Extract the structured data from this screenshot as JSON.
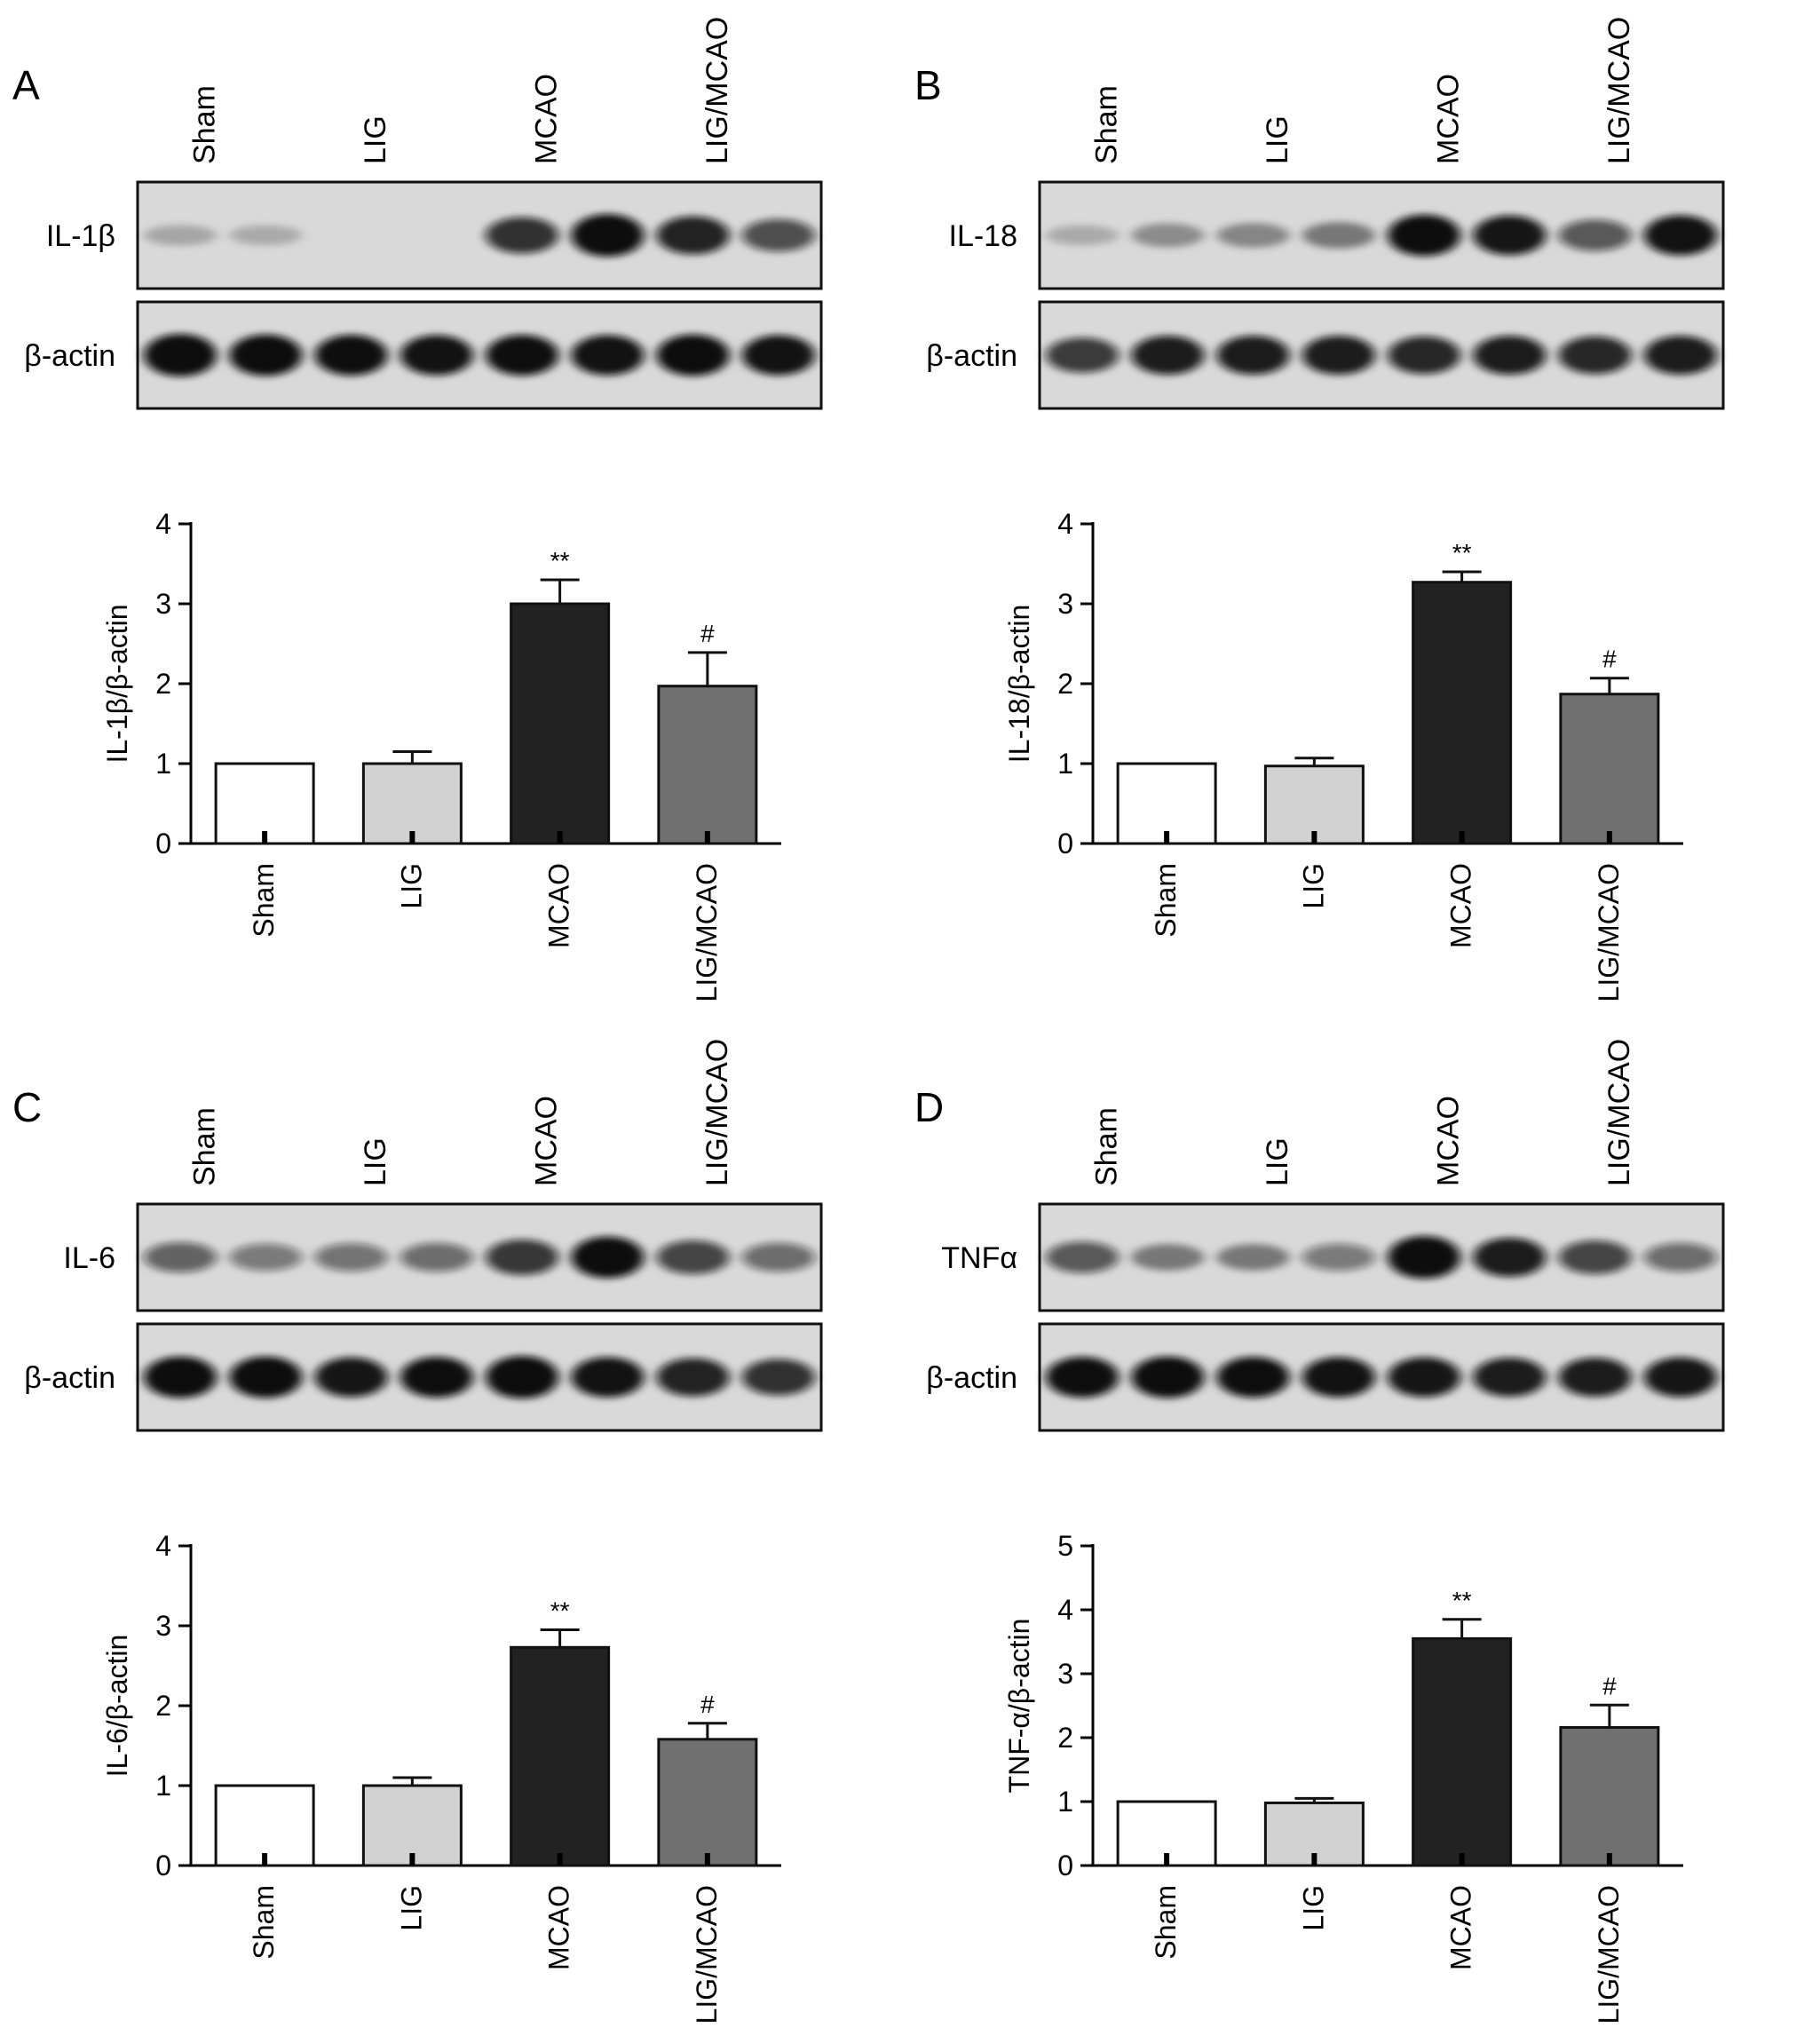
{
  "lane_labels": [
    "Sham",
    "LIG",
    "MCAO",
    "LIG/MCAO"
  ],
  "colors": {
    "Sham": "#ffffff",
    "LIG": "#d2d2d2",
    "MCAO": "#222222",
    "LIG/MCAO": "#707070"
  },
  "chart_data": [
    {
      "panel": "A",
      "type": "bar",
      "categories": [
        "Sham",
        "LIG",
        "MCAO",
        "LIG/MCAO"
      ],
      "values": [
        1.0,
        1.0,
        3.0,
        1.97
      ],
      "errors": [
        0.0,
        0.15,
        0.3,
        0.42
      ],
      "ylabel": "IL-1β/β-actin",
      "ylim": [
        0,
        4
      ],
      "yticks": [
        0,
        1,
        2,
        3,
        4
      ],
      "significance": [
        "",
        "",
        "**",
        "#"
      ],
      "blots": [
        {
          "label": "IL-1β",
          "bands": [
            0.12,
            0.1,
            0.0,
            0.0,
            0.75,
            1.0,
            0.82,
            0.6
          ]
        },
        {
          "label": "β-actin",
          "bands": [
            1.0,
            0.95,
            0.92,
            0.9,
            0.92,
            0.9,
            0.95,
            0.9
          ]
        }
      ]
    },
    {
      "panel": "B",
      "type": "bar",
      "categories": [
        "Sham",
        "LIG",
        "MCAO",
        "LIG/MCAO"
      ],
      "values": [
        1.0,
        0.97,
        3.27,
        1.87
      ],
      "errors": [
        0.0,
        0.1,
        0.13,
        0.2
      ],
      "ylabel": "IL-18/β-actin",
      "ylim": [
        0,
        4
      ],
      "yticks": [
        0,
        1,
        2,
        3,
        4
      ],
      "significance": [
        "",
        "",
        "**",
        "#"
      ],
      "blots": [
        {
          "label": "IL-18",
          "bands": [
            0.1,
            0.25,
            0.28,
            0.35,
            0.95,
            0.88,
            0.55,
            0.9
          ]
        },
        {
          "label": "β-actin",
          "bands": [
            0.7,
            0.85,
            0.85,
            0.85,
            0.8,
            0.85,
            0.8,
            0.85
          ]
        }
      ]
    },
    {
      "panel": "C",
      "type": "bar",
      "categories": [
        "Sham",
        "LIG",
        "MCAO",
        "LIG/MCAO"
      ],
      "values": [
        1.0,
        1.0,
        2.73,
        1.58
      ],
      "errors": [
        0.0,
        0.1,
        0.22,
        0.2
      ],
      "ylabel": "IL-6/β-actin",
      "ylim": [
        0,
        4
      ],
      "yticks": [
        0,
        1,
        2,
        3,
        4
      ],
      "significance": [
        "",
        "",
        "**",
        "#"
      ],
      "blots": [
        {
          "label": "IL-6",
          "bands": [
            0.5,
            0.38,
            0.42,
            0.45,
            0.72,
            0.95,
            0.65,
            0.45
          ]
        },
        {
          "label": "β-actin",
          "bands": [
            0.95,
            0.95,
            0.88,
            0.92,
            1.0,
            0.9,
            0.82,
            0.75
          ]
        }
      ]
    },
    {
      "panel": "D",
      "type": "bar",
      "categories": [
        "Sham",
        "LIG",
        "MCAO",
        "LIG/MCAO"
      ],
      "values": [
        1.0,
        0.98,
        3.55,
        2.16
      ],
      "errors": [
        0.0,
        0.07,
        0.3,
        0.35
      ],
      "ylabel": "TNF-α/β-actin",
      "ylim": [
        0,
        5
      ],
      "yticks": [
        0,
        1,
        2,
        3,
        4,
        5
      ],
      "significance": [
        "",
        "",
        "**",
        "#"
      ],
      "blots": [
        {
          "label": "TNFα",
          "bands": [
            0.55,
            0.35,
            0.35,
            0.38,
            1.0,
            0.85,
            0.65,
            0.45
          ]
        },
        {
          "label": "β-actin",
          "bands": [
            0.92,
            0.95,
            0.92,
            0.9,
            0.88,
            0.85,
            0.85,
            0.88
          ]
        }
      ]
    }
  ]
}
